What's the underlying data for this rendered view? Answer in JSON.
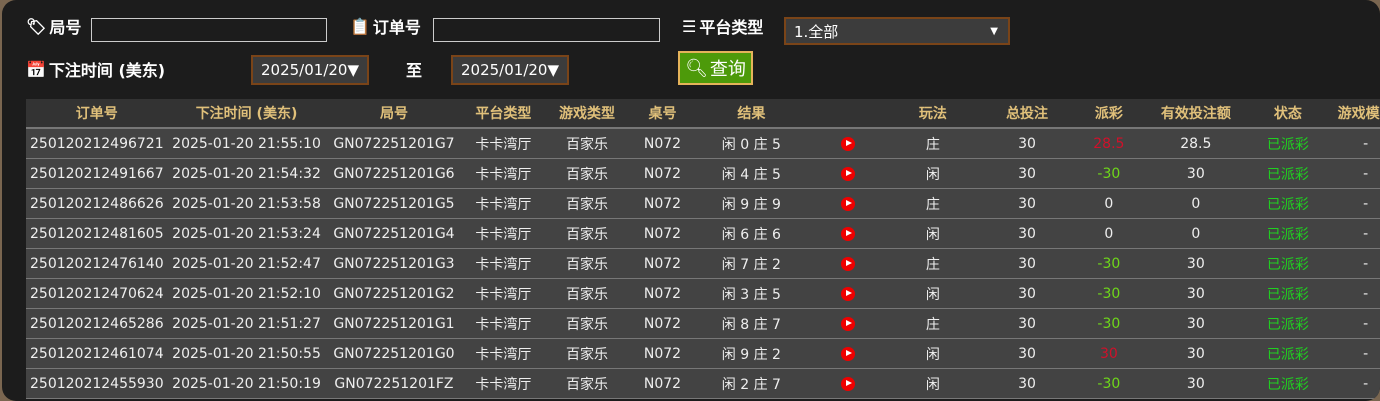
{
  "filters": {
    "round_label": "局号",
    "round_value": "",
    "order_label": "订单号",
    "order_value": "",
    "platform_label": "平台类型",
    "platform_value": "1.全部",
    "time_label": "下注时间 (美东)",
    "date_from": "2025/01/20▼",
    "to_label": "至",
    "date_to": "2025/01/20▼",
    "query_label": "查询"
  },
  "table": {
    "headers": [
      "订单号",
      "下注时间 (美东)",
      "局号",
      "平台类型",
      "游戏类型",
      "桌号",
      "结果",
      "",
      "玩法",
      "总投注",
      "派彩",
      "有效投注额",
      "状态",
      "游戏模式"
    ],
    "rows": [
      [
        "250120212496721",
        "2025-01-20 21:55:10",
        "GN072251201G7",
        "卡卡湾厅",
        "百家乐",
        "N072",
        "闲 0 庄 5",
        "",
        "庄",
        "30",
        "28.5",
        "28.5",
        "已派彩",
        "-"
      ],
      [
        "250120212491667",
        "2025-01-20 21:54:32",
        "GN072251201G6",
        "卡卡湾厅",
        "百家乐",
        "N072",
        "闲 4 庄 5",
        "",
        "闲",
        "30",
        "-30",
        "30",
        "已派彩",
        "-"
      ],
      [
        "250120212486626",
        "2025-01-20 21:53:58",
        "GN072251201G5",
        "卡卡湾厅",
        "百家乐",
        "N072",
        "闲 9 庄 9",
        "",
        "庄",
        "30",
        "0",
        "0",
        "已派彩",
        "-"
      ],
      [
        "250120212481605",
        "2025-01-20 21:53:24",
        "GN072251201G4",
        "卡卡湾厅",
        "百家乐",
        "N072",
        "闲 6 庄 6",
        "",
        "闲",
        "30",
        "0",
        "0",
        "已派彩",
        "-"
      ],
      [
        "250120212476140",
        "2025-01-20 21:52:47",
        "GN072251201G3",
        "卡卡湾厅",
        "百家乐",
        "N072",
        "闲 7 庄 2",
        "",
        "庄",
        "30",
        "-30",
        "30",
        "已派彩",
        "-"
      ],
      [
        "250120212470624",
        "2025-01-20 21:52:10",
        "GN072251201G2",
        "卡卡湾厅",
        "百家乐",
        "N072",
        "闲 3 庄 5",
        "",
        "闲",
        "30",
        "-30",
        "30",
        "已派彩",
        "-"
      ],
      [
        "250120212465286",
        "2025-01-20 21:51:27",
        "GN072251201G1",
        "卡卡湾厅",
        "百家乐",
        "N072",
        "闲 8 庄 7",
        "",
        "庄",
        "30",
        "-30",
        "30",
        "已派彩",
        "-"
      ],
      [
        "250120212461074",
        "2025-01-20 21:50:55",
        "GN072251201G0",
        "卡卡湾厅",
        "百家乐",
        "N072",
        "闲 9 庄 2",
        "",
        "闲",
        "30",
        "30",
        "30",
        "已派彩",
        "-"
      ],
      [
        "250120212455930",
        "2025-01-20 21:50:19",
        "GN072251201FZ",
        "卡卡湾厅",
        "百家乐",
        "N072",
        "闲 2 庄 7",
        "",
        "闲",
        "30",
        "-30",
        "30",
        "已派彩",
        "-"
      ]
    ]
  },
  "colors": {
    "win": "#d0102a",
    "loss": "#6fd71a",
    "status": "#20d020",
    "header_text": "#e0c07a"
  }
}
